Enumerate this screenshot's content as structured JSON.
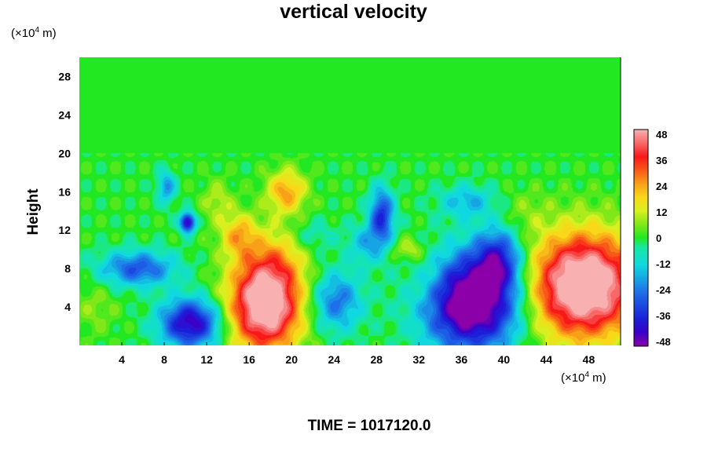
{
  "chart_data": {
    "type": "heatmap",
    "title": "vertical velocity",
    "xlabel": "",
    "ylabel": "Height",
    "x_unit_label": {
      "prefix": "(×10",
      "exp": "4",
      "suffix": " m)"
    },
    "y_unit_label": {
      "prefix": "(×10",
      "exp": "4",
      "suffix": " m)"
    },
    "xlim": [
      0,
      51
    ],
    "ylim": [
      0,
      30
    ],
    "x_ticks": [
      4,
      8,
      12,
      16,
      20,
      24,
      28,
      32,
      36,
      40,
      44,
      48
    ],
    "y_ticks": [
      4,
      8,
      12,
      16,
      20,
      24,
      28
    ],
    "colorbar": {
      "ticks": [
        48,
        36,
        24,
        12,
        0,
        -12,
        -24,
        -36,
        -48
      ],
      "range": [
        -48,
        48
      ],
      "stops": [
        {
          "value": -48,
          "color": "#8b00a8"
        },
        {
          "value": -42,
          "color": "#3a00c8"
        },
        {
          "value": -36,
          "color": "#1a20d8"
        },
        {
          "value": -24,
          "color": "#1e70e8"
        },
        {
          "value": -12,
          "color": "#10d8e0"
        },
        {
          "value": -4,
          "color": "#18e8a0"
        },
        {
          "value": 0,
          "color": "#22e822"
        },
        {
          "value": 6,
          "color": "#80e818"
        },
        {
          "value": 12,
          "color": "#d8f020"
        },
        {
          "value": 18,
          "color": "#f8d818"
        },
        {
          "value": 24,
          "color": "#f8a018"
        },
        {
          "value": 30,
          "color": "#f85818"
        },
        {
          "value": 36,
          "color": "#f81818"
        },
        {
          "value": 42,
          "color": "#f86868"
        },
        {
          "value": 48,
          "color": "#f8b0b0"
        }
      ]
    },
    "features": [
      {
        "x": 17.5,
        "y": 4.2,
        "sx": 2.4,
        "sy": 3.4,
        "amp": 58
      },
      {
        "x": 19.5,
        "y": 16.0,
        "sx": 1.3,
        "sy": 1.6,
        "amp": 24
      },
      {
        "x": 15.0,
        "y": 11.5,
        "sx": 1.2,
        "sy": 1.6,
        "amp": 20
      },
      {
        "x": 18.5,
        "y": 9.0,
        "sx": 2.0,
        "sy": 2.5,
        "amp": 12
      },
      {
        "x": 47.5,
        "y": 6.2,
        "sx": 3.6,
        "sy": 3.8,
        "amp": 62
      },
      {
        "x": 37.0,
        "y": 4.5,
        "sx": 3.2,
        "sy": 3.5,
        "amp": -60
      },
      {
        "x": 39.5,
        "y": 9.0,
        "sx": 1.5,
        "sy": 2.2,
        "amp": -30
      },
      {
        "x": 10.5,
        "y": 2.3,
        "sx": 2.0,
        "sy": 1.8,
        "amp": -44
      },
      {
        "x": 10.2,
        "y": 12.8,
        "sx": 0.5,
        "sy": 0.7,
        "amp": -46
      },
      {
        "x": 5.5,
        "y": 8.0,
        "sx": 2.5,
        "sy": 1.3,
        "amp": -28
      },
      {
        "x": 24.2,
        "y": 4.6,
        "sx": 1.7,
        "sy": 2.2,
        "amp": -24
      },
      {
        "x": 28.5,
        "y": 13.5,
        "sx": 0.8,
        "sy": 2.0,
        "amp": -34
      },
      {
        "x": 27.0,
        "y": 10.5,
        "sx": 1.2,
        "sy": 1.5,
        "amp": -15
      },
      {
        "x": 8.2,
        "y": 16.5,
        "sx": 0.6,
        "sy": 1.2,
        "amp": -20
      },
      {
        "x": 36.5,
        "y": 15.0,
        "sx": 1.8,
        "sy": 1.2,
        "amp": -16
      },
      {
        "x": 31.0,
        "y": 10.0,
        "sx": 1.0,
        "sy": 0.8,
        "amp": 12
      },
      {
        "x": 13.0,
        "y": 15.0,
        "sx": 1.0,
        "sy": 1.5,
        "amp": 10
      },
      {
        "x": 33.0,
        "y": 6.5,
        "sx": 1.5,
        "sy": 2.5,
        "amp": 8
      },
      {
        "x": 1.5,
        "y": 4.0,
        "sx": 1.5,
        "sy": 2.0,
        "amp": 6
      },
      {
        "x": 22.0,
        "y": 11.5,
        "sx": 1.5,
        "sy": 1.2,
        "amp": -8
      },
      {
        "x": 42.0,
        "y": 14.0,
        "sx": 1.5,
        "sy": 1.5,
        "amp": 5
      }
    ]
  },
  "footer": {
    "time_label": "TIME = 1017120.0"
  }
}
